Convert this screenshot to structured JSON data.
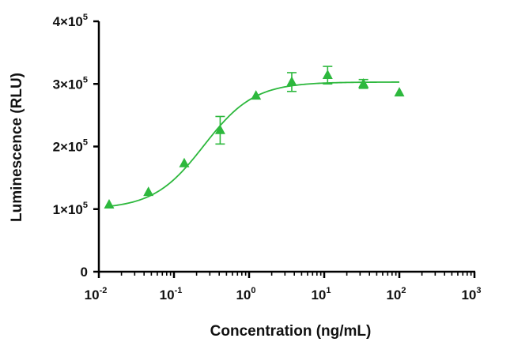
{
  "chart_data": {
    "type": "scatter",
    "xlabel": "Concentration (ng/mL)",
    "ylabel": "Luminescence (RLU)",
    "x_scale": "log",
    "xlim": [
      0.01,
      1000
    ],
    "ylim": [
      0,
      400000
    ],
    "x_ticks": [
      {
        "value": 0.01,
        "base": "10",
        "exp": "-2"
      },
      {
        "value": 0.1,
        "base": "10",
        "exp": "-1"
      },
      {
        "value": 1,
        "base": "10",
        "exp": "0"
      },
      {
        "value": 10,
        "base": "10",
        "exp": "1"
      },
      {
        "value": 100,
        "base": "10",
        "exp": "2"
      },
      {
        "value": 1000,
        "base": "10",
        "exp": "3"
      }
    ],
    "y_ticks": [
      {
        "value": 0,
        "base": "0",
        "exp": ""
      },
      {
        "value": 100000,
        "base": "1×10",
        "exp": "5"
      },
      {
        "value": 200000,
        "base": "2×10",
        "exp": "5"
      },
      {
        "value": 300000,
        "base": "3×10",
        "exp": "5"
      },
      {
        "value": 400000,
        "base": "4×10",
        "exp": "5"
      }
    ],
    "grid": false,
    "legend": "none",
    "color": "#2db83d",
    "marker": "triangle",
    "series": [
      {
        "x": [
          0.0137,
          0.0457,
          0.137,
          0.412,
          1.235,
          3.7,
          11.1,
          33.3,
          100
        ],
        "y": [
          107000,
          127000,
          173000,
          226000,
          281000,
          303000,
          314000,
          300000,
          286000
        ],
        "error": [
          0,
          0,
          0,
          22000,
          0,
          15000,
          14000,
          7000,
          0
        ]
      }
    ],
    "fit_curve": {
      "model": "4PL",
      "bottom": 100000,
      "top": 303000,
      "ec50": 0.25,
      "hill": 1.3,
      "x_range": [
        0.0137,
        100
      ]
    }
  }
}
